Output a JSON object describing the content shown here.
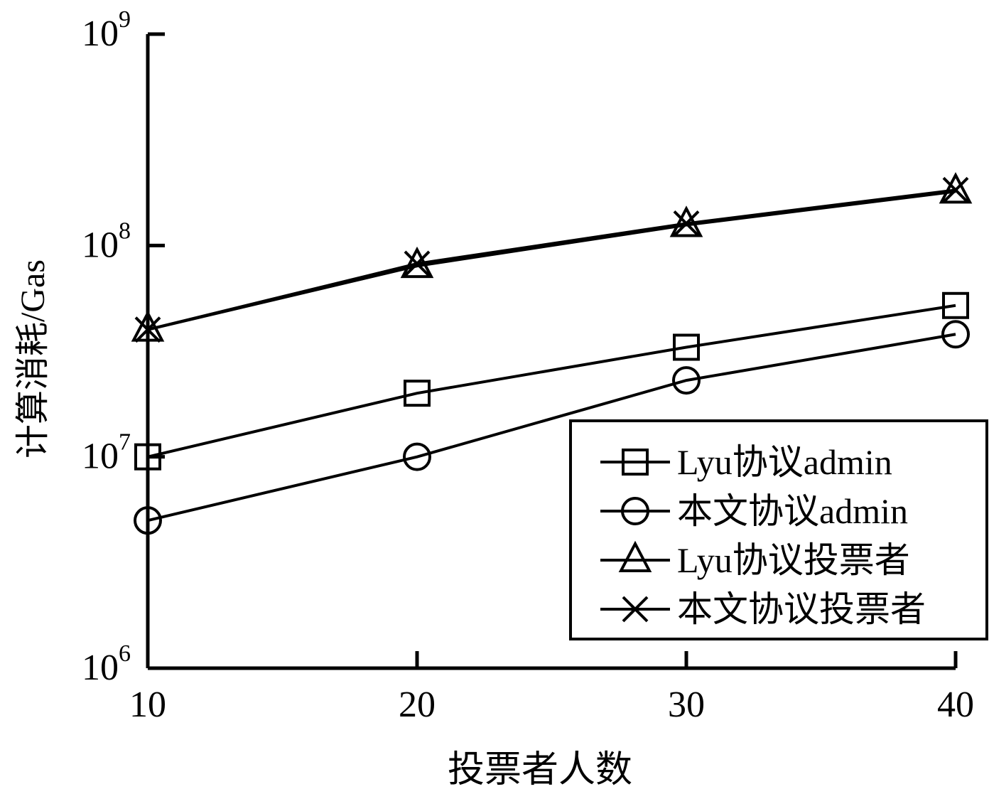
{
  "chart_data": {
    "type": "line",
    "xlabel": "投票者人数",
    "ylabel": "计算消耗/Gas",
    "x": [
      10,
      20,
      30,
      40
    ],
    "x_ticks": [
      "10",
      "20",
      "30",
      "40"
    ],
    "yscale": "log",
    "ylim": [
      1000000,
      1000000000
    ],
    "y_ticks": [
      {
        "value": 1000000,
        "base": "10",
        "exp": "6"
      },
      {
        "value": 10000000,
        "base": "10",
        "exp": "7"
      },
      {
        "value": 100000000,
        "base": "10",
        "exp": "8"
      },
      {
        "value": 1000000000,
        "base": "10",
        "exp": "9"
      }
    ],
    "grid": false,
    "legend_position": "lower-right",
    "series": [
      {
        "name": "Lyu协议admin",
        "marker": "square",
        "values": [
          10000000,
          20000000,
          33000000,
          52000000
        ]
      },
      {
        "name": "本文协议admin",
        "marker": "circle",
        "values": [
          5000000,
          10000000,
          23000000,
          38000000
        ]
      },
      {
        "name": "Lyu协议投票者",
        "marker": "triangle",
        "values": [
          40000000,
          80000000,
          125000000,
          180000000
        ]
      },
      {
        "name": "本文协议投票者",
        "marker": "x",
        "values": [
          40000000,
          82000000,
          127000000,
          183000000
        ]
      }
    ]
  }
}
